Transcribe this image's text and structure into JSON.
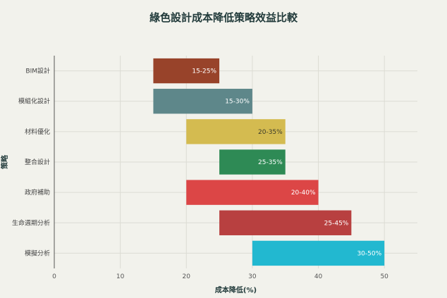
{
  "chart_data": {
    "type": "bar",
    "orientation": "horizontal",
    "title": "綠色設計成本降低策略效益比較",
    "xlabel": "成本降低(%)",
    "ylabel": "策略",
    "xlim": [
      0,
      55
    ],
    "xticks": [
      0,
      10,
      20,
      30,
      40,
      50
    ],
    "grid": true,
    "categories": [
      "BIM設計",
      "模組化設計",
      "材料優化",
      "整合設計",
      "政府補助",
      "生命週期分析",
      "模擬分析"
    ],
    "ranges": [
      [
        15,
        25
      ],
      [
        15,
        30
      ],
      [
        20,
        35
      ],
      [
        25,
        35
      ],
      [
        20,
        40
      ],
      [
        25,
        45
      ],
      [
        30,
        50
      ]
    ],
    "data_labels": [
      "15-25%",
      "15-30%",
      "20-35%",
      "25-35%",
      "20-40%",
      "25-45%",
      "30-50%"
    ],
    "colors": [
      "#98432a",
      "#5e878a",
      "#d4bb50",
      "#2e8a55",
      "#dc4646",
      "#b84040",
      "#22b8d0"
    ]
  }
}
